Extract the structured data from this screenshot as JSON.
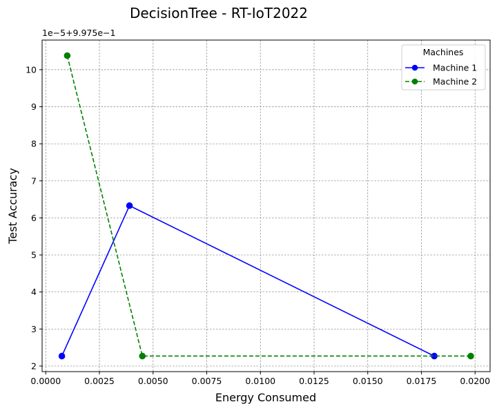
{
  "chart_data": {
    "type": "line",
    "title": "DecisionTree - RT-IoT2022",
    "xlabel": "Energy Consumed",
    "ylabel": "Test Accuracy",
    "offset_label": "1e−5+9.975e−1",
    "xlim": [
      -0.00017,
      0.0207
    ],
    "ylim": [
      1.85,
      10.8
    ],
    "x_ticks": [
      0.0,
      0.0025,
      0.005,
      0.0075,
      0.01,
      0.0125,
      0.015,
      0.0175,
      0.02
    ],
    "x_tick_labels": [
      "0.0000",
      "0.0025",
      "0.0050",
      "0.0075",
      "0.0100",
      "0.0125",
      "0.0150",
      "0.0175",
      "0.0200"
    ],
    "y_ticks": [
      2,
      3,
      4,
      5,
      6,
      7,
      8,
      9,
      10
    ],
    "y_tick_labels": [
      "2",
      "3",
      "4",
      "5",
      "6",
      "7",
      "8",
      "9",
      "10"
    ],
    "grid": true,
    "legend": {
      "title": "Machines",
      "placement": "top-right"
    },
    "series": [
      {
        "name": "Machine 1",
        "color": "#0000ff",
        "dash": "solid",
        "marker": "circle",
        "x": [
          0.00075,
          0.0039,
          0.0181
        ],
        "y": [
          2.27,
          6.33,
          2.27
        ]
      },
      {
        "name": "Machine 2",
        "color": "#008000",
        "dash": "dashed",
        "marker": "circle",
        "x": [
          0.001,
          0.0045,
          0.0198
        ],
        "y": [
          10.38,
          2.27,
          2.27
        ]
      }
    ]
  }
}
